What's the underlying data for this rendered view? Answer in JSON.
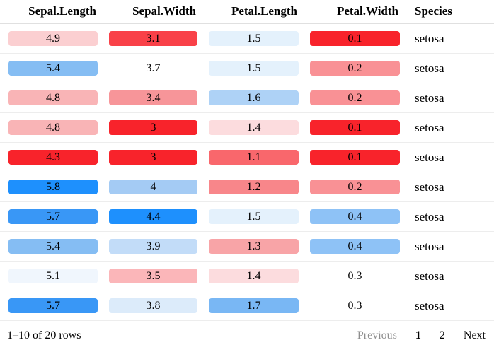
{
  "table": {
    "columns": [
      {
        "label": "Sepal.Length"
      },
      {
        "label": "Sepal.Width"
      },
      {
        "label": "Petal.Length"
      },
      {
        "label": "Petal.Width"
      },
      {
        "label": "Species"
      }
    ],
    "rows": [
      {
        "cells": [
          {
            "text": "4.9",
            "bg": "#fbcfd1"
          },
          {
            "text": "3.1",
            "bg": "#f94148"
          },
          {
            "text": "1.5",
            "bg": "#e4f1fc"
          },
          {
            "text": "0.1",
            "bg": "#f8232b"
          },
          {
            "text": "setosa",
            "bg": null
          }
        ]
      },
      {
        "cells": [
          {
            "text": "5.4",
            "bg": "#85bdf3"
          },
          {
            "text": "3.7",
            "bg": null
          },
          {
            "text": "1.5",
            "bg": "#e4f1fc"
          },
          {
            "text": "0.2",
            "bg": "#f99195"
          },
          {
            "text": "setosa",
            "bg": null
          }
        ]
      },
      {
        "cells": [
          {
            "text": "4.8",
            "bg": "#f9b4b6"
          },
          {
            "text": "3.4",
            "bg": "#f79599"
          },
          {
            "text": "1.6",
            "bg": "#aed2f6"
          },
          {
            "text": "0.2",
            "bg": "#f99195"
          },
          {
            "text": "setosa",
            "bg": null
          }
        ]
      },
      {
        "cells": [
          {
            "text": "4.8",
            "bg": "#f9b4b6"
          },
          {
            "text": "3",
            "bg": "#f8232b"
          },
          {
            "text": "1.4",
            "bg": "#fcdcde"
          },
          {
            "text": "0.1",
            "bg": "#f8232b"
          },
          {
            "text": "setosa",
            "bg": null
          }
        ]
      },
      {
        "cells": [
          {
            "text": "4.3",
            "bg": "#f8232b"
          },
          {
            "text": "3",
            "bg": "#f8232b"
          },
          {
            "text": "1.1",
            "bg": "#f9676c"
          },
          {
            "text": "0.1",
            "bg": "#f8232b"
          },
          {
            "text": "setosa",
            "bg": null
          }
        ]
      },
      {
        "cells": [
          {
            "text": "5.8",
            "bg": "#1e90fd"
          },
          {
            "text": "4",
            "bg": "#a4cbf4"
          },
          {
            "text": "1.2",
            "bg": "#f8868a"
          },
          {
            "text": "0.2",
            "bg": "#f99195"
          },
          {
            "text": "setosa",
            "bg": null
          }
        ]
      },
      {
        "cells": [
          {
            "text": "5.7",
            "bg": "#3997f6"
          },
          {
            "text": "4.4",
            "bg": "#1e90fd"
          },
          {
            "text": "1.5",
            "bg": "#e4f1fc"
          },
          {
            "text": "0.4",
            "bg": "#8ec2f6"
          },
          {
            "text": "setosa",
            "bg": null
          }
        ]
      },
      {
        "cells": [
          {
            "text": "5.4",
            "bg": "#85bdf3"
          },
          {
            "text": "3.9",
            "bg": "#c2dcf8"
          },
          {
            "text": "1.3",
            "bg": "#f8a4a7"
          },
          {
            "text": "0.4",
            "bg": "#8ec2f6"
          },
          {
            "text": "setosa",
            "bg": null
          }
        ]
      },
      {
        "cells": [
          {
            "text": "5.1",
            "bg": "#f0f6fd"
          },
          {
            "text": "3.5",
            "bg": "#fbb6b9"
          },
          {
            "text": "1.4",
            "bg": "#fcdcde"
          },
          {
            "text": "0.3",
            "bg": null
          },
          {
            "text": "setosa",
            "bg": null
          }
        ]
      },
      {
        "cells": [
          {
            "text": "5.7",
            "bg": "#3997f6"
          },
          {
            "text": "3.8",
            "bg": "#dcebfa"
          },
          {
            "text": "1.7",
            "bg": "#79b7f4"
          },
          {
            "text": "0.3",
            "bg": null
          },
          {
            "text": "setosa",
            "bg": null
          }
        ]
      }
    ]
  },
  "footer": {
    "info": "1–10 of 20 rows",
    "pagination": {
      "previous_label": "Previous",
      "page_labels": [
        "1",
        "2"
      ],
      "current_page": "1",
      "next_label": "Next"
    }
  },
  "colors": {
    "scale_low": "#f8232b",
    "scale_mid": "#ffffff",
    "scale_high": "#1e90fd",
    "header_border": "#e0e0e0",
    "row_border": "#ededed",
    "disabled_text": "#8e8e8e"
  }
}
